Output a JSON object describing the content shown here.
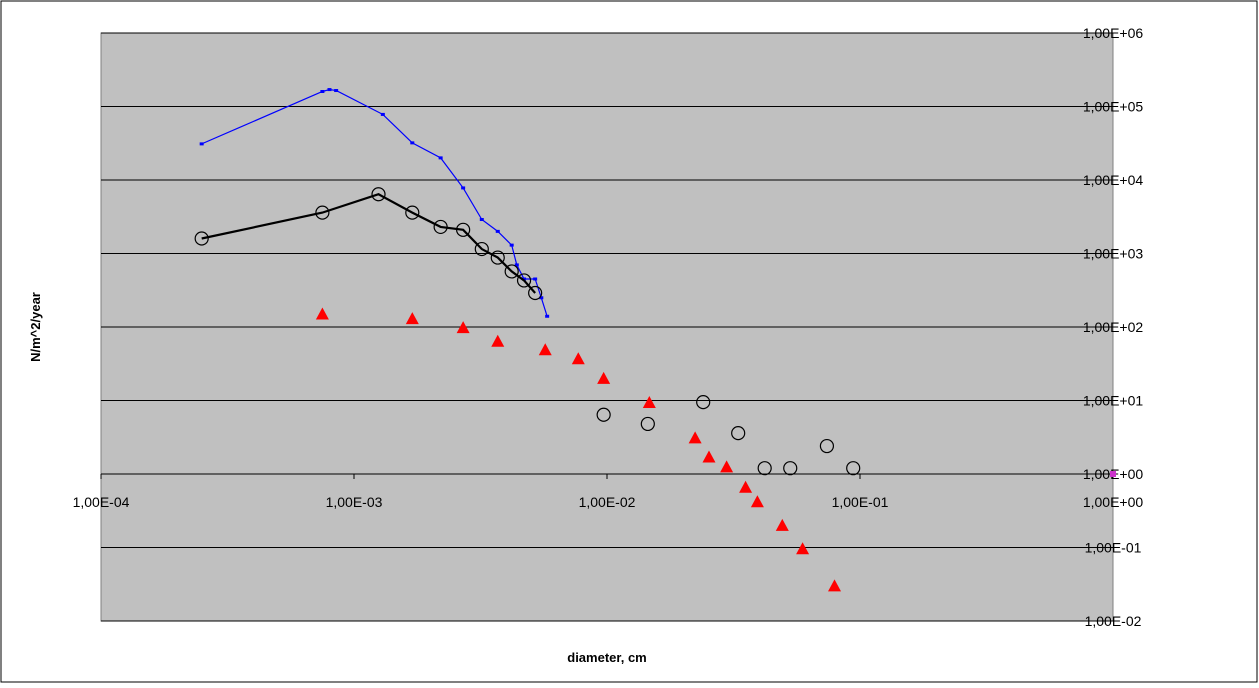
{
  "chart_data": {
    "type": "scatter",
    "title": "",
    "xlabel": "diameter, cm",
    "ylabel": "N/m^2/year",
    "xscale": "log",
    "yscale": "log",
    "xlim": [
      0.0001,
      1
    ],
    "ylim": [
      0.01,
      1000000
    ],
    "grid": "horizontal major gridlines",
    "legend": "none",
    "plot_background": "#c0c0c0",
    "x_tick_labels": [
      "1,00E-04",
      "1,00E-03",
      "1,00E-02",
      "1,00E-01",
      "1,00E+00"
    ],
    "x_tick_values": [
      0.0001,
      0.001,
      0.01,
      0.1,
      1
    ],
    "y_tick_labels": [
      "1,00E-02",
      "1,00E-01",
      "1,00E+00",
      "1,00E+01",
      "1,00E+02",
      "1,00E+03",
      "1,00E+04",
      "1,00E+05",
      "1,00E+06"
    ],
    "y_tick_values": [
      0.01,
      0.1,
      1,
      10,
      100,
      1000,
      10000,
      100000,
      1000000
    ],
    "series": [
      {
        "style": "line-small-markers",
        "color": "#0000ff",
        "x": [
          0.00025,
          0.00075,
          0.0008,
          0.00085,
          0.0013,
          0.0017,
          0.0022,
          0.0027,
          0.0032,
          0.0037,
          0.0042,
          0.0044,
          0.0047,
          0.0052,
          0.0055,
          0.0058
        ],
        "y": [
          31000,
          160000,
          170000,
          165000,
          78000,
          32000,
          20000,
          7800,
          2900,
          2000,
          1300,
          700,
          450,
          450,
          250,
          140
        ]
      },
      {
        "style": "line-open-circles",
        "color": "#000000",
        "x": [
          0.00025,
          0.00075,
          0.00125,
          0.0017,
          0.0022,
          0.0027,
          0.0032,
          0.0037,
          0.0042,
          0.0047,
          0.0052
        ],
        "y": [
          1600,
          3600,
          6400,
          3600,
          2300,
          2100,
          1150,
          880,
          570,
          430,
          290
        ]
      },
      {
        "style": "open-circles",
        "color": "#000000",
        "x": [
          0.0097,
          0.0145,
          0.024,
          0.033,
          0.042,
          0.053,
          0.074,
          0.094
        ],
        "y": [
          6.4,
          4.8,
          9.5,
          3.6,
          1.2,
          1.2,
          2.4,
          1.2
        ]
      },
      {
        "style": "filled-triangles",
        "color": "#ff0000",
        "x": [
          0.00075,
          0.0017,
          0.0027,
          0.0037,
          0.0057,
          0.0077,
          0.0097,
          0.0147,
          0.0223,
          0.0253,
          0.0297,
          0.0353,
          0.0393,
          0.0493,
          0.0593,
          0.0793
        ],
        "y": [
          150,
          130,
          98,
          64,
          49,
          37,
          20,
          9.4,
          3.1,
          1.7,
          1.25,
          0.66,
          0.42,
          0.2,
          0.096,
          0.03
        ]
      },
      {
        "style": "square-marker",
        "color": "#cc33cc",
        "x": [
          1.0
        ],
        "y": [
          1.0
        ]
      }
    ]
  }
}
